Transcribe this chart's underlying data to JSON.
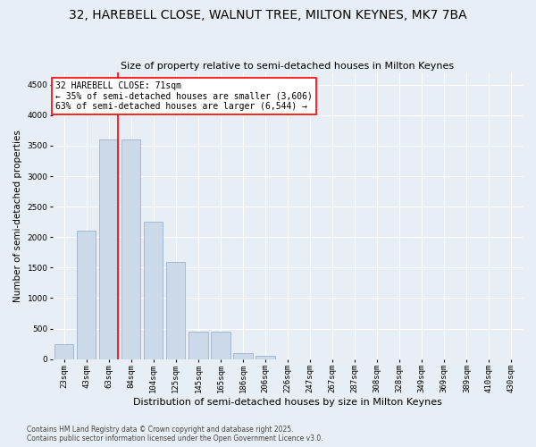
{
  "title": "32, HAREBELL CLOSE, WALNUT TREE, MILTON KEYNES, MK7 7BA",
  "subtitle": "Size of property relative to semi-detached houses in Milton Keynes",
  "xlabel": "Distribution of semi-detached houses by size in Milton Keynes",
  "ylabel": "Number of semi-detached properties",
  "categories": [
    "23sqm",
    "43sqm",
    "63sqm",
    "84sqm",
    "104sqm",
    "125sqm",
    "145sqm",
    "165sqm",
    "186sqm",
    "206sqm",
    "226sqm",
    "247sqm",
    "267sqm",
    "287sqm",
    "308sqm",
    "328sqm",
    "349sqm",
    "369sqm",
    "389sqm",
    "410sqm",
    "430sqm"
  ],
  "values": [
    250,
    2100,
    3600,
    3600,
    2250,
    1600,
    450,
    450,
    100,
    60,
    0,
    0,
    0,
    0,
    0,
    0,
    0,
    0,
    0,
    0,
    0
  ],
  "bar_color": "#ccd9e8",
  "bar_edge_color": "#99b3cc",
  "vline_bar_index": 2,
  "vline_color": "red",
  "annotation_line1": "32 HAREBELL CLOSE: 71sqm",
  "annotation_line2": "← 35% of semi-detached houses are smaller (3,606)",
  "annotation_line3": "63% of semi-detached houses are larger (6,544) →",
  "annotation_box_color": "white",
  "annotation_box_edge_color": "red",
  "ylim": [
    0,
    4700
  ],
  "yticks": [
    0,
    500,
    1000,
    1500,
    2000,
    2500,
    3000,
    3500,
    4000,
    4500
  ],
  "background_color": "#e8eef5",
  "grid_color": "#ffffff",
  "footnote": "Contains HM Land Registry data © Crown copyright and database right 2025.\nContains public sector information licensed under the Open Government Licence v3.0.",
  "title_fontsize": 10,
  "xlabel_fontsize": 8,
  "ylabel_fontsize": 7.5,
  "tick_fontsize": 6.5,
  "annot_fontsize": 7,
  "footnote_fontsize": 5.5
}
